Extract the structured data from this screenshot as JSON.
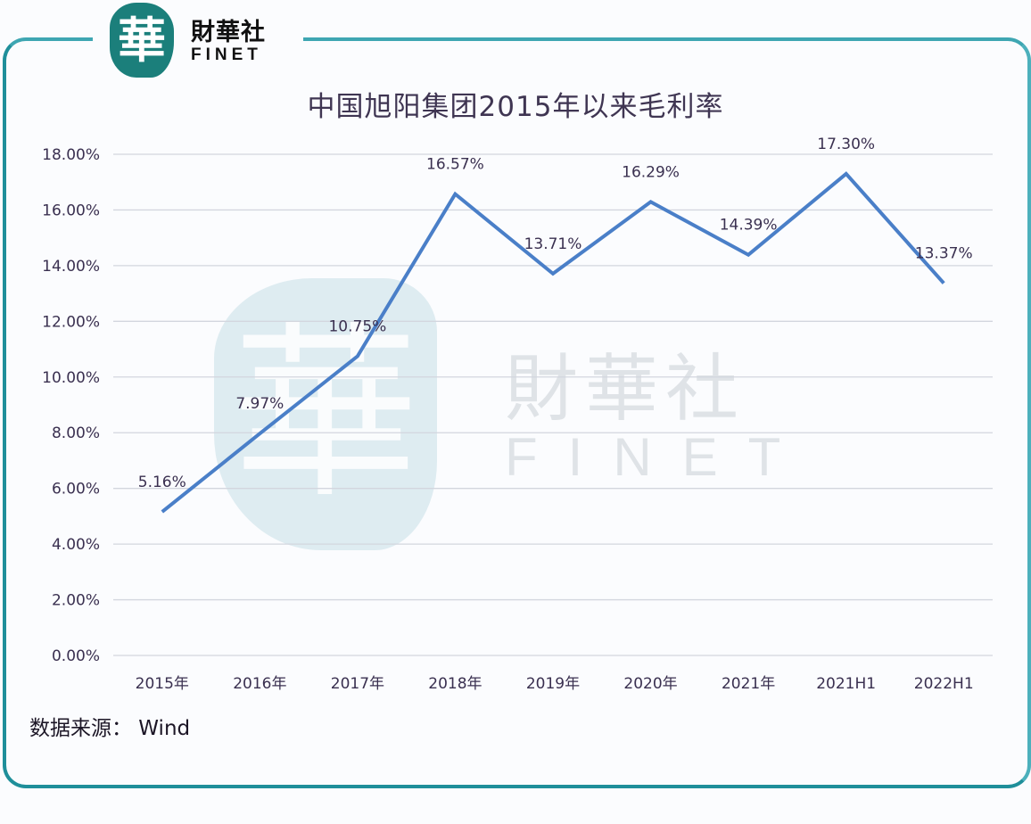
{
  "brand": {
    "logo_glyph": "華",
    "name_cn": "財華社",
    "name_en": "FINET"
  },
  "watermark": {
    "glyph": "華",
    "name_cn": "財華社",
    "name_en": "FINET"
  },
  "source": "数据来源： Wind",
  "colors": {
    "frame": "#1f8f9a",
    "logo": "#1b7f7b",
    "line": "#4a7fc8",
    "grid": "#d3d6de",
    "text": "#3a3050"
  },
  "chart_data": {
    "type": "line",
    "title": "中国旭阳集团2015年以来毛利率",
    "xlabel": "",
    "ylabel": "",
    "categories": [
      "2015年",
      "2016年",
      "2017年",
      "2018年",
      "2019年",
      "2020年",
      "2021年",
      "2021H1",
      "2022H1"
    ],
    "series": [
      {
        "name": "毛利率",
        "values": [
          5.16,
          7.97,
          10.75,
          16.57,
          13.71,
          16.29,
          14.39,
          17.3,
          13.37
        ],
        "labels": [
          "5.16%",
          "7.97%",
          "10.75%",
          "16.57%",
          "13.71%",
          "16.29%",
          "14.39%",
          "17.30%",
          "13.37%"
        ]
      }
    ],
    "ylim": [
      0,
      18
    ],
    "yticks": [
      "0.00%",
      "2.00%",
      "4.00%",
      "6.00%",
      "8.00%",
      "10.00%",
      "12.00%",
      "14.00%",
      "16.00%",
      "18.00%"
    ],
    "grid": true,
    "legend": "none"
  }
}
